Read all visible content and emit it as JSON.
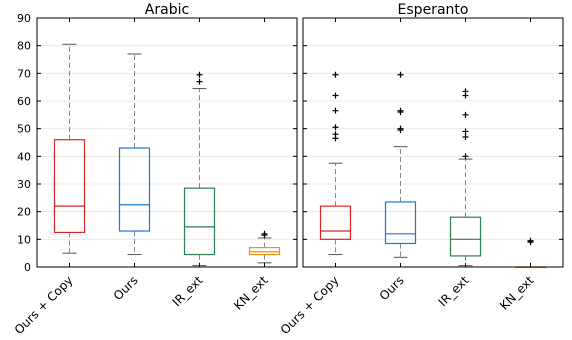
{
  "chart_data": [
    {
      "type": "boxplot",
      "title": "Arabic",
      "ylim": [
        0,
        90
      ],
      "yticks": [
        0,
        10,
        20,
        30,
        40,
        50,
        60,
        70,
        80,
        90
      ],
      "grid": "horizontal",
      "categories": [
        "Ours + Copy",
        "Ours",
        "IR_ext",
        "KN_ext"
      ],
      "boxes": [
        {
          "category": "Ours + Copy",
          "color": "#d62728",
          "whisker_low": 5,
          "q1": 12.5,
          "median": 22,
          "q3": 46,
          "whisker_high": 80.5,
          "outliers": []
        },
        {
          "category": "Ours",
          "color": "#1f77d4",
          "whisker_low": 4.5,
          "q1": 13,
          "median": 22.5,
          "q3": 43,
          "whisker_high": 77,
          "outliers": []
        },
        {
          "category": "IR_ext",
          "color": "#2e7d4f",
          "whisker_low": 0.5,
          "q1": 4.5,
          "median": 14.5,
          "q3": 28.5,
          "whisker_high": 64.5,
          "outliers": [
            67,
            69.5
          ]
        },
        {
          "category": "KN_ext",
          "color": "#f0940a",
          "whisker_low": 1.5,
          "q1": 4.5,
          "median": 5.5,
          "q3": 7,
          "whisker_high": 10.5,
          "outliers": [
            11.5,
            12
          ]
        }
      ]
    },
    {
      "type": "boxplot",
      "title": "Esperanto",
      "ylim": [
        0,
        90
      ],
      "yticks": [
        0,
        10,
        20,
        30,
        40,
        50,
        60,
        70,
        80,
        90
      ],
      "grid": "horizontal",
      "categories": [
        "Ours + Copy",
        "Ours",
        "IR_ext",
        "KN_ext"
      ],
      "boxes": [
        {
          "category": "Ours + Copy",
          "color": "#d62728",
          "whisker_low": 4.5,
          "q1": 10,
          "median": 13,
          "q3": 22,
          "whisker_high": 37.5,
          "outliers": [
            46.5,
            48,
            50.5,
            56.5,
            62,
            69.5
          ]
        },
        {
          "category": "Ours",
          "color": "#1f77d4",
          "whisker_low": 3.5,
          "q1": 8.5,
          "median": 12,
          "q3": 23.5,
          "whisker_high": 43.5,
          "outliers": [
            49.5,
            50,
            56,
            56.5,
            69.5
          ]
        },
        {
          "category": "IR_ext",
          "color": "#2e7d4f",
          "whisker_low": 0.5,
          "q1": 4,
          "median": 10,
          "q3": 18,
          "whisker_high": 39,
          "outliers": [
            40,
            47,
            49,
            55,
            62,
            63.5
          ]
        },
        {
          "category": "KN_ext",
          "color": "#f0940a",
          "whisker_low": 0,
          "q1": 0,
          "median": 0,
          "q3": 0,
          "whisker_high": 0,
          "outliers": [
            9,
            9.5
          ]
        }
      ]
    }
  ]
}
